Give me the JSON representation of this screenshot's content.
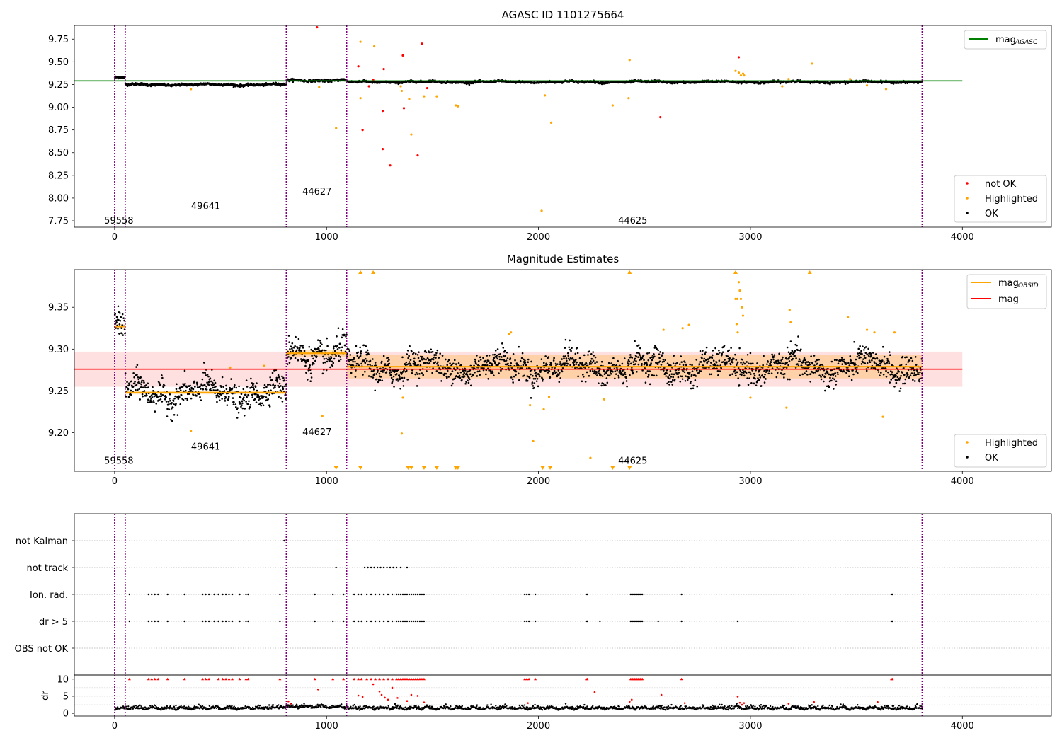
{
  "chart_data": [
    {
      "type": "scatter",
      "title": "AGASC ID 1101275664",
      "xlim": [
        -190,
        4420
      ],
      "ylim": [
        7.68,
        9.9
      ],
      "xticks": [
        0,
        1000,
        2000,
        3000,
        4000
      ],
      "xtick_labels": [
        "0",
        "1000",
        "2000",
        "3000",
        "4000"
      ],
      "yticks": [
        7.75,
        8.0,
        8.25,
        8.5,
        8.75,
        9.0,
        9.25,
        9.5,
        9.75
      ],
      "ytick_labels": [
        "7.75",
        "8.00",
        "8.25",
        "8.50",
        "8.75",
        "9.00",
        "9.25",
        "9.50",
        "9.75"
      ],
      "reference_line": {
        "name": "mag",
        "name_sub": "AGASC",
        "y": 9.29,
        "x": [
          -190,
          4000
        ],
        "color": "#008000"
      },
      "obs_boundaries": [
        0,
        50,
        810,
        1095,
        3810
      ],
      "obs_labels": [
        {
          "text": "59558",
          "x": 20,
          "y": 7.72
        },
        {
          "text": "49641",
          "x": 430,
          "y": 7.88
        },
        {
          "text": "44627",
          "x": 955,
          "y": 8.04
        },
        {
          "text": "44625",
          "x": 2445,
          "y": 7.72
        }
      ],
      "segments": [
        {
          "x": [
            0,
            50
          ],
          "mean": 9.325,
          "spread": 0.012
        },
        {
          "x": [
            50,
            810
          ],
          "mean": 9.248,
          "spread": 0.012
        },
        {
          "x": [
            810,
            1095
          ],
          "mean": 9.296,
          "spread": 0.012
        },
        {
          "x": [
            1095,
            3810
          ],
          "mean": 9.279,
          "spread": 0.011
        }
      ],
      "series": [
        {
          "name": "not OK",
          "color": "#ff0000",
          "points": [
            [
              955,
              9.88
            ],
            [
              1150,
              9.45
            ],
            [
              1170,
              8.75
            ],
            [
              1220,
              9.3
            ],
            [
              1265,
              8.96
            ],
            [
              1270,
              9.42
            ],
            [
              1265,
              8.54
            ],
            [
              1300,
              8.36
            ],
            [
              1360,
              9.57
            ],
            [
              1365,
              8.99
            ],
            [
              1430,
              8.47
            ],
            [
              1450,
              9.7
            ],
            [
              1475,
              9.21
            ],
            [
              2575,
              8.89
            ],
            [
              2945,
              9.55
            ],
            [
              1200,
              9.23
            ]
          ]
        },
        {
          "name": "Highlighted",
          "color": "#ffa500",
          "points": [
            [
              1045,
              8.77
            ],
            [
              1160,
              9.72
            ],
            [
              1225,
              9.67
            ],
            [
              1390,
              9.09
            ],
            [
              1400,
              8.7
            ],
            [
              1160,
              9.1
            ],
            [
              1355,
              9.18
            ],
            [
              1350,
              9.23
            ],
            [
              1460,
              9.12
            ],
            [
              1520,
              9.12
            ],
            [
              1610,
              9.02
            ],
            [
              1620,
              9.01
            ],
            [
              2015,
              7.86
            ],
            [
              2030,
              9.13
            ],
            [
              2060,
              8.83
            ],
            [
              2350,
              9.02
            ],
            [
              2430,
              9.52
            ],
            [
              2425,
              9.1
            ],
            [
              2930,
              9.4
            ],
            [
              2945,
              9.38
            ],
            [
              2955,
              9.35
            ],
            [
              2965,
              9.37
            ],
            [
              2970,
              9.35
            ],
            [
              3180,
              9.31
            ],
            [
              3290,
              9.48
            ],
            [
              3150,
              9.23
            ],
            [
              3470,
              9.31
            ],
            [
              3550,
              9.24
            ],
            [
              3640,
              9.2
            ],
            [
              360,
              9.2
            ],
            [
              965,
              9.22
            ]
          ]
        },
        {
          "name": "OK",
          "color": "#000000"
        }
      ],
      "legend": [
        {
          "name": "mag",
          "sub": "AGASC",
          "marker": "line",
          "color": "#008000",
          "loc": "upper right"
        },
        {
          "name": "not OK",
          "marker": "dot",
          "color": "#ff0000",
          "loc": "lower right"
        },
        {
          "name": "Highlighted",
          "marker": "dot",
          "color": "#ffa500",
          "loc": "lower right"
        },
        {
          "name": "OK",
          "marker": "dot",
          "color": "#000000",
          "loc": "lower right"
        }
      ]
    },
    {
      "type": "scatter",
      "title": "Magnitude Estimates",
      "xlim": [
        -190,
        4420
      ],
      "ylim": [
        9.154,
        9.395
      ],
      "xticks": [
        0,
        1000,
        2000,
        3000,
        4000
      ],
      "xtick_labels": [
        "0",
        "1000",
        "2000",
        "3000",
        "4000"
      ],
      "yticks": [
        9.2,
        9.25,
        9.3,
        9.35
      ],
      "ytick_labels": [
        "9.20",
        "9.25",
        "9.30",
        "9.35"
      ],
      "reference_line": {
        "name": "mag",
        "y": 9.276,
        "x": [
          -190,
          4000
        ],
        "color": "#ff0000",
        "band": [
          9.255,
          9.297
        ]
      },
      "obs_boundaries": [
        0,
        50,
        810,
        1095,
        3810
      ],
      "obs_labels": [
        {
          "text": "59558",
          "x": 20,
          "y": 9.163
        },
        {
          "text": "49641",
          "x": 430,
          "y": 9.18
        },
        {
          "text": "44627",
          "x": 955,
          "y": 9.197
        },
        {
          "text": "44625",
          "x": 2445,
          "y": 9.163
        }
      ],
      "segments": [
        {
          "x": [
            0,
            50
          ],
          "mean": 9.327,
          "spread": 0.01,
          "band": 0.003
        },
        {
          "x": [
            50,
            810
          ],
          "mean": 9.248,
          "spread": 0.01,
          "band": 0.002
        },
        {
          "x": [
            810,
            1095
          ],
          "mean": 9.295,
          "spread": 0.011,
          "band": 0.004
        },
        {
          "x": [
            1095,
            3810
          ],
          "mean": 9.279,
          "spread": 0.01,
          "band": 0.014
        }
      ],
      "series": [
        {
          "name": "OBSID",
          "marker": "line",
          "color": "#ffa500"
        },
        {
          "name": "Highlighted",
          "color": "#ffa500",
          "points": [
            [
              2930,
              9.36
            ],
            [
              2935,
              9.33
            ],
            [
              2945,
              9.38
            ],
            [
              2950,
              9.37
            ],
            [
              2955,
              9.36
            ],
            [
              2960,
              9.35
            ],
            [
              2940,
              9.32
            ],
            [
              2938,
              9.36
            ],
            [
              2965,
              9.34
            ],
            [
              3185,
              9.347
            ],
            [
              3190,
              9.332
            ],
            [
              3460,
              9.338
            ],
            [
              3550,
              9.323
            ],
            [
              3585,
              9.32
            ],
            [
              3680,
              9.32
            ],
            [
              2680,
              9.325
            ],
            [
              2710,
              9.329
            ],
            [
              2590,
              9.323
            ],
            [
              1870,
              9.32
            ],
            [
              1860,
              9.318
            ],
            [
              1360,
              9.242
            ],
            [
              1355,
              9.199
            ],
            [
              980,
              9.22
            ],
            [
              1975,
              9.19
            ],
            [
              2025,
              9.228
            ],
            [
              2050,
              9.243
            ],
            [
              2245,
              9.17
            ],
            [
              2310,
              9.24
            ],
            [
              3000,
              9.242
            ],
            [
              3170,
              9.23
            ],
            [
              3625,
              9.219
            ],
            [
              360,
              9.202
            ],
            [
              545,
              9.278
            ],
            [
              705,
              9.28
            ],
            [
              1960,
              9.233
            ]
          ]
        },
        {
          "name": "OK",
          "color": "#000000"
        }
      ],
      "offscale_up": [
        1160,
        1220,
        2430,
        2930,
        3280
      ],
      "offscale_down": [
        1045,
        1160,
        1385,
        1400,
        1460,
        1520,
        1610,
        1620,
        2020,
        2055,
        2350,
        2430
      ],
      "legend": [
        {
          "name": "mag",
          "sub": "OBSID",
          "marker": "line",
          "color": "#ffa500",
          "loc": "upper right"
        },
        {
          "name": "mag",
          "marker": "line",
          "color": "#ff0000",
          "loc": "upper right"
        },
        {
          "name": "Highlighted",
          "marker": "dot",
          "color": "#ffa500",
          "loc": "lower right"
        },
        {
          "name": "OK",
          "marker": "dot",
          "color": "#000000",
          "loc": "lower right"
        }
      ]
    },
    {
      "type": "scatter",
      "title": "",
      "xlim": [
        -190,
        4420
      ],
      "flag_rows": [
        "not Kalman",
        "not track",
        "Ion. rad.",
        "dr > 5",
        "OBS not OK"
      ],
      "obs_boundaries": [
        0,
        50,
        810,
        1095,
        3810
      ],
      "flags": {
        "not Kalman": [
          800
        ],
        "not track": [
          1045,
          1180,
          1195,
          1210,
          1225,
          1240,
          1255,
          1270,
          1285,
          1300,
          1315,
          1330,
          1350,
          1380
        ],
        "Ion. rad.": [
          70,
          160,
          175,
          190,
          205,
          250,
          330,
          415,
          430,
          445,
          470,
          490,
          510,
          525,
          540,
          555,
          590,
          620,
          630,
          780,
          945,
          1030,
          1080,
          1130,
          1150,
          1165,
          1190,
          1210,
          1230,
          1250,
          1270,
          1290,
          1310,
          1330,
          1340,
          1350,
          1360,
          1370,
          1380,
          1390,
          1400,
          1410,
          1420,
          1430,
          1440,
          1450,
          1460,
          1935,
          1945,
          1955,
          1985,
          2225,
          2230,
          2435,
          2440,
          2445,
          2450,
          2455,
          2460,
          2465,
          2470,
          2475,
          2480,
          2485,
          2490,
          2675,
          3665,
          3670
        ],
        "dr > 5": [
          70,
          160,
          175,
          190,
          205,
          250,
          330,
          415,
          430,
          445,
          470,
          490,
          510,
          525,
          540,
          555,
          590,
          620,
          630,
          780,
          945,
          1030,
          1080,
          1130,
          1150,
          1165,
          1190,
          1210,
          1230,
          1250,
          1270,
          1290,
          1310,
          1330,
          1340,
          1350,
          1360,
          1370,
          1380,
          1390,
          1400,
          1410,
          1420,
          1430,
          1440,
          1450,
          1460,
          1935,
          1945,
          1955,
          1985,
          2225,
          2230,
          2290,
          2435,
          2440,
          2445,
          2450,
          2455,
          2460,
          2465,
          2470,
          2475,
          2480,
          2485,
          2490,
          2565,
          2675,
          2940,
          3665,
          3670
        ],
        "OBS not OK": []
      }
    },
    {
      "type": "scatter",
      "title": "",
      "xlim": [
        -190,
        4420
      ],
      "ylim": [
        -0.8,
        11.2
      ],
      "xticks": [
        0,
        1000,
        2000,
        3000,
        4000
      ],
      "xtick_labels": [
        "0",
        "1000",
        "2000",
        "3000",
        "4000"
      ],
      "yticks": [
        0,
        5,
        10
      ],
      "ytick_labels": [
        "0",
        "5",
        "10"
      ],
      "ylabel": "dr",
      "obs_boundaries": [
        0,
        50,
        810,
        1095,
        3810
      ],
      "capped": [
        70,
        160,
        175,
        190,
        205,
        250,
        330,
        415,
        430,
        445,
        490,
        510,
        525,
        540,
        555,
        590,
        620,
        630,
        780,
        945,
        1030,
        1080,
        1130,
        1150,
        1165,
        1190,
        1210,
        1230,
        1250,
        1270,
        1290,
        1310,
        1330,
        1340,
        1350,
        1360,
        1370,
        1380,
        1390,
        1400,
        1410,
        1420,
        1430,
        1440,
        1450,
        1460,
        1935,
        1945,
        1955,
        1985,
        2225,
        2230,
        2435,
        2440,
        2445,
        2450,
        2455,
        2460,
        2465,
        2470,
        2475,
        2480,
        2485,
        2490,
        2675,
        3665,
        3670
      ],
      "red_points": [
        [
          820,
          3.5
        ],
        [
          830,
          2.8
        ],
        [
          960,
          7.0
        ],
        [
          1150,
          5.2
        ],
        [
          1170,
          4.8
        ],
        [
          1220,
          8.5
        ],
        [
          1250,
          6.4
        ],
        [
          1260,
          5.4
        ],
        [
          1275,
          4.6
        ],
        [
          1290,
          4.0
        ],
        [
          1310,
          7.5
        ],
        [
          1335,
          4.5
        ],
        [
          1380,
          3.6
        ],
        [
          1400,
          5.4
        ],
        [
          1430,
          5.1
        ],
        [
          1460,
          3.2
        ],
        [
          1950,
          3.0
        ],
        [
          2265,
          6.2
        ],
        [
          2430,
          3.4
        ],
        [
          2440,
          4.0
        ],
        [
          2580,
          5.4
        ],
        [
          2690,
          3.0
        ],
        [
          2940,
          4.9
        ],
        [
          2950,
          3.1
        ],
        [
          2960,
          2.5
        ],
        [
          2970,
          3.0
        ],
        [
          3180,
          2.8
        ],
        [
          3300,
          3.3
        ],
        [
          3600,
          3.3
        ]
      ]
    }
  ]
}
